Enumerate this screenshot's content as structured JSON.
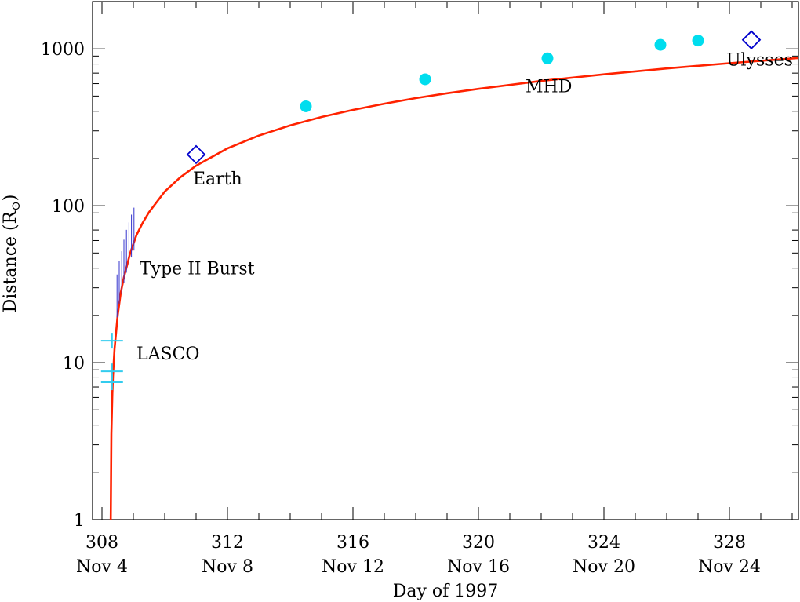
{
  "chart_data": {
    "type": "scatter",
    "title": "",
    "xlabel": "Day of 1997",
    "ylabel": "Distance (R",
    "ylabel_subscript": "⊙",
    "ylabel_close": ")",
    "yscale": "log",
    "xlim": [
      307.7,
      330.2
    ],
    "ylim": [
      1,
      2000
    ],
    "x_ticks": [
      {
        "value": 308,
        "label": "308",
        "date": "Nov 4"
      },
      {
        "value": 312,
        "label": "312",
        "date": "Nov 8"
      },
      {
        "value": 316,
        "label": "316",
        "date": "Nov 12"
      },
      {
        "value": 320,
        "label": "320",
        "date": "Nov 16"
      },
      {
        "value": 324,
        "label": "324",
        "date": "Nov 20"
      },
      {
        "value": 328,
        "label": "328",
        "date": "Nov 24"
      }
    ],
    "y_ticks": [
      {
        "value": 1,
        "label": "1"
      },
      {
        "value": 10,
        "label": "10"
      },
      {
        "value": 100,
        "label": "100"
      },
      {
        "value": 1000,
        "label": "1000"
      }
    ],
    "grid": false,
    "colors": {
      "fit": "#ff2200",
      "lasco": "#33ccee",
      "burst": "#3333cc",
      "mhd": "#00ddee",
      "diamond": "#0000cc"
    },
    "series": [
      {
        "kind": "fit_curve",
        "t0": 308.28,
        "points": [
          [
            308.28,
            1
          ],
          [
            308.3,
            3.5
          ],
          [
            308.33,
            6.3
          ],
          [
            308.35,
            8.2
          ],
          [
            308.4,
            12.2
          ],
          [
            308.5,
            20
          ],
          [
            308.6,
            28
          ],
          [
            308.7,
            35
          ],
          [
            308.9,
            50
          ],
          [
            309.1,
            65
          ],
          [
            309.3,
            78
          ],
          [
            309.5,
            91
          ],
          [
            310.0,
            123
          ],
          [
            310.5,
            152
          ],
          [
            311.0,
            180
          ],
          [
            312.0,
            232
          ],
          [
            313.0,
            280
          ],
          [
            314.0,
            325
          ],
          [
            315.0,
            368
          ],
          [
            316.0,
            408
          ],
          [
            317.0,
            447
          ],
          [
            318.0,
            485
          ],
          [
            319.0,
            521
          ],
          [
            320.0,
            556
          ],
          [
            322.0,
            624
          ],
          [
            324.0,
            688
          ],
          [
            326.0,
            750
          ],
          [
            328.0,
            810
          ],
          [
            330.2,
            874
          ]
        ]
      },
      {
        "kind": "lasco",
        "points": [
          [
            308.32,
            7.5
          ],
          [
            308.32,
            8.8
          ],
          [
            308.32,
            13.8
          ]
        ]
      },
      {
        "kind": "type2_burst",
        "points": [
          [
            308.48,
            27
          ],
          [
            308.55,
            33
          ],
          [
            308.63,
            38
          ],
          [
            308.7,
            45
          ],
          [
            308.78,
            52
          ],
          [
            308.86,
            58
          ],
          [
            308.94,
            65
          ],
          [
            309.02,
            72
          ]
        ]
      },
      {
        "kind": "mhd",
        "points": [
          [
            314.5,
            430
          ],
          [
            318.3,
            640
          ],
          [
            322.2,
            870
          ],
          [
            325.8,
            1060
          ],
          [
            327.0,
            1130
          ]
        ]
      },
      {
        "kind": "in_situ",
        "points": [
          [
            311.0,
            212
          ],
          [
            328.7,
            1140
          ]
        ]
      }
    ],
    "annotations": [
      {
        "text": "LASCO",
        "x": 309.1,
        "y": 11.5
      },
      {
        "text": "Type II Burst",
        "x": 309.2,
        "y": 40
      },
      {
        "text": "Earth",
        "x": 310.9,
        "y": 150
      },
      {
        "text": "MHD",
        "x": 321.5,
        "y": 580
      },
      {
        "text": "Ulysses",
        "x": 327.9,
        "y": 860
      }
    ]
  }
}
